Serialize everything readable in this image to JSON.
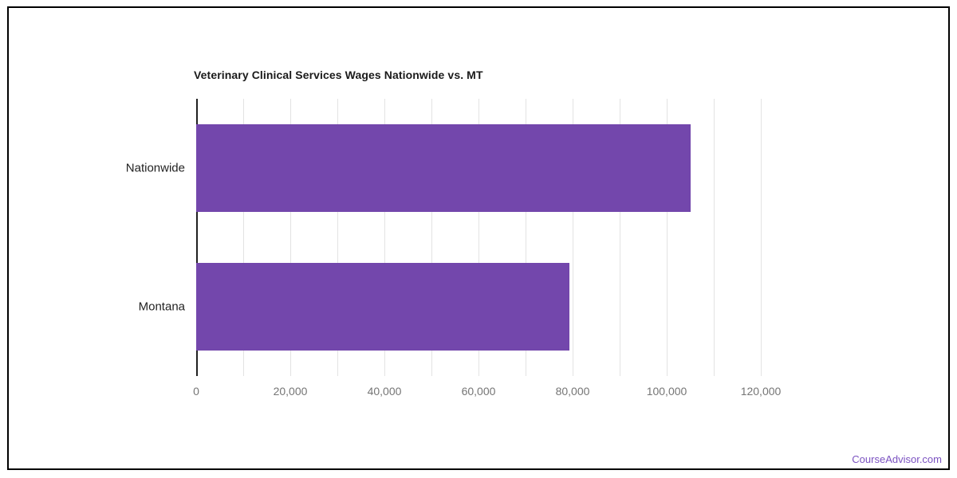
{
  "footer": {
    "brand": "CourseAdvisor.com"
  },
  "colors": {
    "bar": "#7347ac",
    "gridline": "#e3e3e3",
    "axis_line": "#212121",
    "tick_label": "#757575",
    "category_label": "#222222",
    "title": "#1a1a1a",
    "footer_link": "#7b52c1",
    "frame_border": "#000000",
    "background": "#ffffff"
  },
  "chart_data": {
    "type": "bar",
    "orientation": "horizontal",
    "title": "Veterinary Clinical Services Wages Nationwide vs. MT",
    "categories": [
      "Nationwide",
      "Montana"
    ],
    "values": [
      105000,
      79300
    ],
    "xlabel": "",
    "ylabel": "",
    "xlim": [
      0,
      120000
    ],
    "x_ticks": [
      0,
      20000,
      40000,
      60000,
      80000,
      100000,
      120000
    ],
    "x_tick_labels": [
      "0",
      "20,000",
      "40,000",
      "60,000",
      "80,000",
      "100,000",
      "120,000"
    ],
    "gridline_interval": 10000,
    "grid": true,
    "legend": "none"
  }
}
